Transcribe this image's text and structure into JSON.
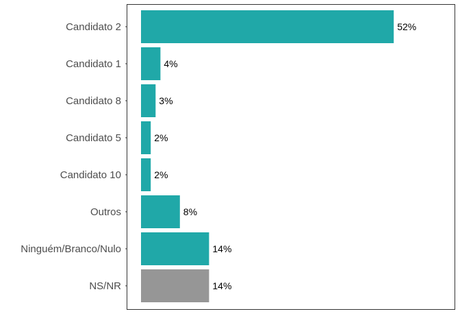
{
  "chart_data": {
    "type": "bar",
    "orientation": "horizontal",
    "categories": [
      "Candidato 2",
      "Candidato 1",
      "Candidato 8",
      "Candidato 5",
      "Candidato 10",
      "Outros",
      "Ninguém/Branco/Nulo",
      "NS/NR"
    ],
    "values": [
      52,
      4,
      3,
      2,
      2,
      8,
      14,
      14
    ],
    "value_labels": [
      "52%",
      "4%",
      "3%",
      "2%",
      "2%",
      "8%",
      "14%",
      "14%"
    ],
    "bar_colors": [
      "#20a8a8",
      "#20a8a8",
      "#20a8a8",
      "#20a8a8",
      "#20a8a8",
      "#20a8a8",
      "#20a8a8",
      "#969696"
    ],
    "xlim": [
      0,
      65
    ],
    "grid": false,
    "panel_border": true,
    "title": "",
    "xlabel": "",
    "ylabel": ""
  }
}
